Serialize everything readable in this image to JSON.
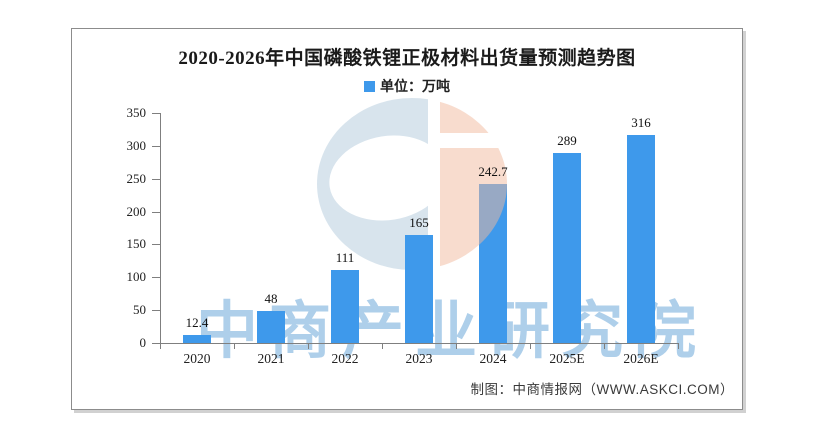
{
  "panel": {
    "title": "2020-2026年中国磷酸铁锂正极材料出货量预测趋势图",
    "source_credit": "制图：中商情报网（WWW.ASKCI.COM）",
    "watermark_text": "中商产业研究院"
  },
  "legend": {
    "label": "单位：万吨",
    "swatch_color": "#3e99eb"
  },
  "chart_data": {
    "type": "bar",
    "title": "2020-2026年中国磷酸铁锂正极材料出货量预测趋势图",
    "categories": [
      "2020",
      "2021",
      "2022",
      "2023",
      "2024",
      "2025E",
      "2026E"
    ],
    "values": [
      12.4,
      48,
      111,
      165,
      242.7,
      289,
      316
    ],
    "value_labels": [
      "12.4",
      "48",
      "111",
      "165",
      "242.7",
      "289",
      "316"
    ],
    "unit_label": "单位：万吨",
    "xlabel": "",
    "ylabel": "",
    "ylim": [
      0,
      350
    ],
    "yticks": [
      0,
      50,
      100,
      150,
      200,
      250,
      300,
      350
    ],
    "grid": false,
    "legend_position": "top-center",
    "bar_color": "#3e99eb"
  },
  "colors": {
    "bar": "#3e99eb",
    "axis": "#7f7f7f",
    "watermark_blue": "rgba(184,206,222,0.55)",
    "watermark_salmon": "rgba(241,185,157,0.5)",
    "watermark_text": "rgba(120,175,220,0.6)"
  }
}
